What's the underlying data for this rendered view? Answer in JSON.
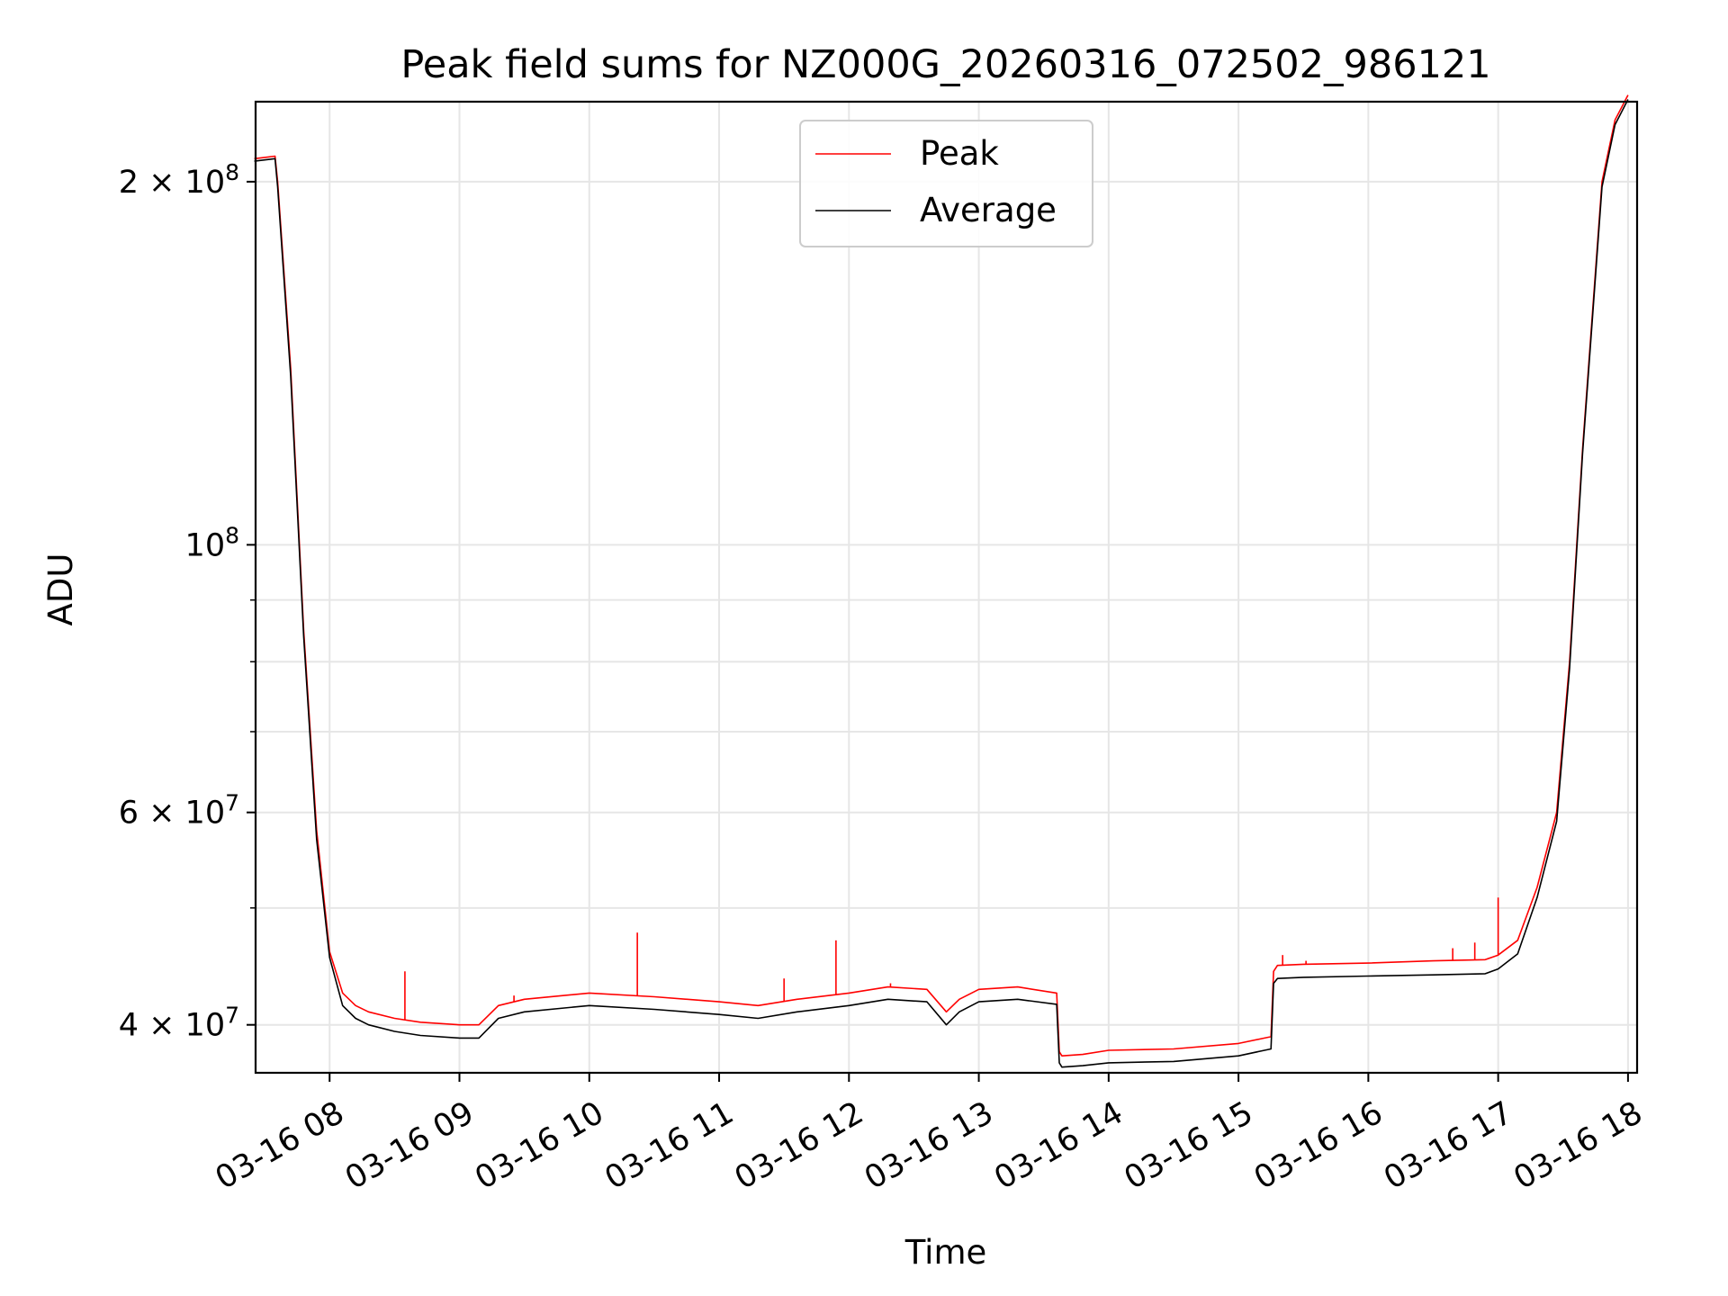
{
  "chart_data": {
    "type": "line",
    "title": "Peak field sums for NZ000G_20260316_072502_986121",
    "xlabel": "Time",
    "ylabel": "ADU",
    "y_scale": "log",
    "grid": true,
    "legend_position": "top-center",
    "xlim_hours": [
      7.43,
      18.07
    ],
    "ylim": [
      36500000,
      233000000
    ],
    "x_tick_hours": [
      8,
      9,
      10,
      11,
      12,
      13,
      14,
      15,
      16,
      17,
      18
    ],
    "x_tick_labels": [
      "03-16 08",
      "03-16 09",
      "03-16 10",
      "03-16 11",
      "03-16 12",
      "03-16 13",
      "03-16 14",
      "03-16 15",
      "03-16 16",
      "03-16 17",
      "03-16 18"
    ],
    "y_major_ticks": [
      {
        "value": 40000000,
        "mantissa": "4",
        "exponent": "7"
      },
      {
        "value": 60000000,
        "mantissa": "6",
        "exponent": "7"
      },
      {
        "value": 100000000,
        "mantissa": "",
        "exponent": "8"
      },
      {
        "value": 200000000,
        "mantissa": "2",
        "exponent": "8"
      }
    ],
    "y_minor_ticks": [
      50000000,
      70000000,
      80000000,
      90000000
    ],
    "series": [
      {
        "name": "Peak",
        "color": "#ff0000",
        "hours": [
          7.42,
          7.5,
          7.58,
          7.6,
          7.7,
          7.8,
          7.9,
          8.0,
          8.1,
          8.2,
          8.3,
          8.5,
          8.7,
          9.0,
          9.15,
          9.3,
          9.5,
          10.0,
          10.5,
          11.0,
          11.3,
          11.6,
          12.0,
          12.3,
          12.6,
          12.75,
          12.85,
          13.0,
          13.3,
          13.6,
          13.62,
          13.64,
          13.8,
          14.0,
          14.5,
          15.0,
          15.2,
          15.25,
          15.27,
          15.3,
          15.5,
          16.0,
          16.5,
          16.9,
          17.0,
          17.15,
          17.3,
          17.45,
          17.55,
          17.65,
          17.8,
          17.9,
          18.0
        ],
        "values": [
          209000000,
          209500000,
          210000000,
          200000000,
          140000000,
          85000000,
          58000000,
          46000000,
          42500000,
          41500000,
          41000000,
          40500000,
          40200000,
          40000000,
          40000000,
          41500000,
          42000000,
          42500000,
          42200000,
          41800000,
          41500000,
          42000000,
          42500000,
          43000000,
          42800000,
          41000000,
          42000000,
          42800000,
          43000000,
          42500000,
          38000000,
          37700000,
          37800000,
          38100000,
          38200000,
          38600000,
          39000000,
          39100000,
          44300000,
          44800000,
          44900000,
          45000000,
          45200000,
          45300000,
          45700000,
          47000000,
          52000000,
          60000000,
          80000000,
          120000000,
          200000000,
          225000000,
          236000000
        ]
      },
      {
        "name": "Average",
        "color": "#000000",
        "hours": [
          7.42,
          7.5,
          7.58,
          7.6,
          7.7,
          7.8,
          7.9,
          8.0,
          8.1,
          8.2,
          8.3,
          8.5,
          8.7,
          9.0,
          9.15,
          9.3,
          9.5,
          10.0,
          10.5,
          11.0,
          11.3,
          11.6,
          12.0,
          12.3,
          12.6,
          12.75,
          12.85,
          13.0,
          13.3,
          13.6,
          13.62,
          13.64,
          13.8,
          14.0,
          14.5,
          15.0,
          15.2,
          15.25,
          15.27,
          15.3,
          15.5,
          16.0,
          16.5,
          16.9,
          17.0,
          17.15,
          17.3,
          17.45,
          17.55,
          17.65,
          17.8,
          17.9,
          18.0
        ],
        "values": [
          208000000,
          208500000,
          209000000,
          198000000,
          138000000,
          84000000,
          57000000,
          45500000,
          41500000,
          40500000,
          40000000,
          39500000,
          39200000,
          39000000,
          39000000,
          40500000,
          41000000,
          41500000,
          41200000,
          40800000,
          40500000,
          41000000,
          41500000,
          42000000,
          41800000,
          40000000,
          41000000,
          41800000,
          42000000,
          41600000,
          37200000,
          36900000,
          37000000,
          37200000,
          37300000,
          37700000,
          38100000,
          38200000,
          43300000,
          43700000,
          43800000,
          43900000,
          44000000,
          44100000,
          44500000,
          45800000,
          51000000,
          59000000,
          79000000,
          119000000,
          198000000,
          223000000,
          234000000
        ]
      }
    ],
    "spikes": [
      {
        "hour": 8.58,
        "value": 44300000
      },
      {
        "hour": 9.42,
        "value": 42300000
      },
      {
        "hour": 10.37,
        "value": 47700000
      },
      {
        "hour": 11.5,
        "value": 43700000
      },
      {
        "hour": 11.9,
        "value": 47000000
      },
      {
        "hour": 12.32,
        "value": 43300000
      },
      {
        "hour": 15.34,
        "value": 45700000
      },
      {
        "hour": 15.52,
        "value": 45200000
      },
      {
        "hour": 16.65,
        "value": 46300000
      },
      {
        "hour": 16.82,
        "value": 46800000
      },
      {
        "hour": 17.0,
        "value": 51000000
      }
    ]
  }
}
